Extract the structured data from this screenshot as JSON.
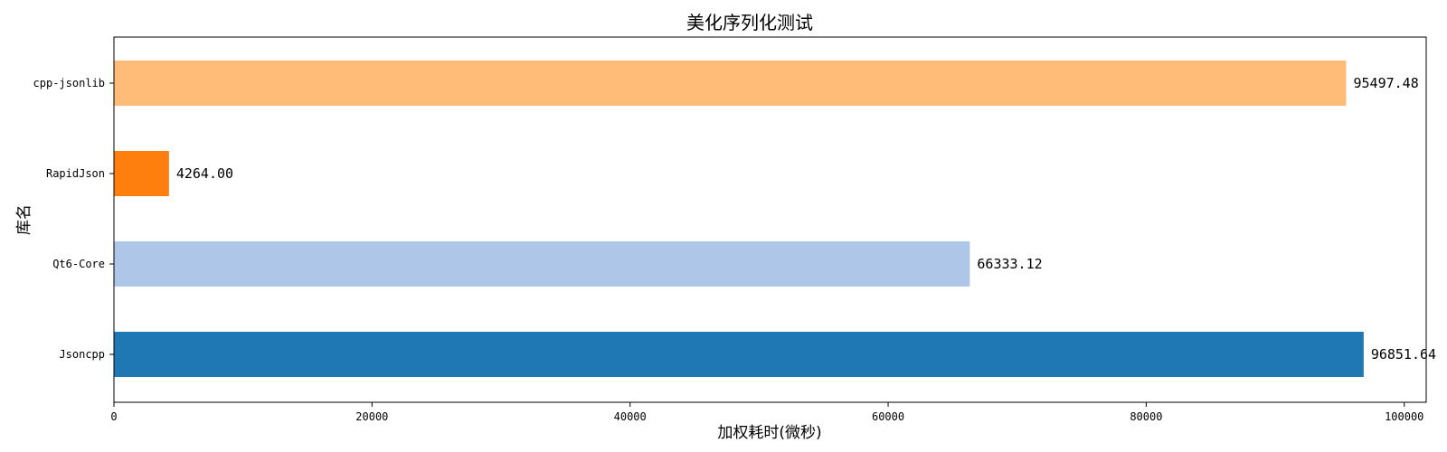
{
  "chart_data": {
    "type": "bar",
    "orientation": "horizontal",
    "title": "美化序列化测试",
    "xlabel": "加权耗时(微秒)",
    "ylabel": "库名",
    "xlim": [
      0,
      101700
    ],
    "xticks": [
      0,
      20000,
      40000,
      60000,
      80000,
      100000
    ],
    "grid": false,
    "categories": [
      "Jsoncpp",
      "Qt6-Core",
      "RapidJson",
      "cpp-jsonlib"
    ],
    "values": [
      96851.64,
      66333.12,
      4264.0,
      95497.48
    ],
    "value_labels": [
      "96851.64",
      "66333.12",
      "4264.00",
      "95497.48"
    ],
    "colors": [
      "#1f77b4",
      "#aec7e8",
      "#ff7f0e",
      "#ffbb78"
    ]
  }
}
